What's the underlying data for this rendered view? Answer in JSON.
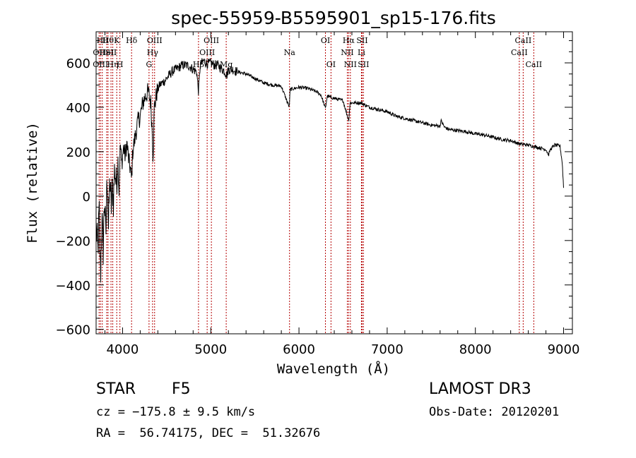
{
  "chart_data": {
    "type": "line",
    "title": "spec-55959-B5595901_sp15-176.fits",
    "xlabel": "Wavelength (Å)",
    "ylabel": "Flux (relative)",
    "xlim": [
      3700,
      9100
    ],
    "ylim": [
      -620,
      740
    ],
    "xticks": [
      4000,
      5000,
      6000,
      7000,
      8000,
      9000
    ],
    "yticks": [
      -600,
      -400,
      -200,
      0,
      200,
      400,
      600
    ],
    "grid": false,
    "series": [
      {
        "name": "spectrum",
        "anchors": [
          [
            3700,
            -150
          ],
          [
            3720,
            -250
          ],
          [
            3735,
            -60
          ],
          [
            3750,
            -370
          ],
          [
            3765,
            -100
          ],
          [
            3780,
            -240
          ],
          [
            3795,
            0
          ],
          [
            3810,
            -200
          ],
          [
            3825,
            120
          ],
          [
            3840,
            -150
          ],
          [
            3855,
            80
          ],
          [
            3870,
            -60
          ],
          [
            3885,
            50
          ],
          [
            3895,
            -30
          ],
          [
            3910,
            130
          ],
          [
            3930,
            40
          ],
          [
            3945,
            180
          ],
          [
            3960,
            20
          ],
          [
            3975,
            240
          ],
          [
            3990,
            140
          ],
          [
            4010,
            220
          ],
          [
            4030,
            180
          ],
          [
            4050,
            240
          ],
          [
            4070,
            160
          ],
          [
            4090,
            120
          ],
          [
            4102,
            70
          ],
          [
            4115,
            200
          ],
          [
            4140,
            260
          ],
          [
            4170,
            330
          ],
          [
            4200,
            360
          ],
          [
            4230,
            420
          ],
          [
            4260,
            450
          ],
          [
            4290,
            470
          ],
          [
            4320,
            420
          ],
          [
            4340,
            260
          ],
          [
            4345,
            170
          ],
          [
            4360,
            400
          ],
          [
            4390,
            470
          ],
          [
            4420,
            500
          ],
          [
            4450,
            510
          ],
          [
            4480,
            520
          ],
          [
            4520,
            540
          ],
          [
            4560,
            560
          ],
          [
            4600,
            570
          ],
          [
            4640,
            580
          ],
          [
            4680,
            590
          ],
          [
            4720,
            590
          ],
          [
            4760,
            585
          ],
          [
            4800,
            570
          ],
          [
            4840,
            560
          ],
          [
            4861,
            470
          ],
          [
            4880,
            590
          ],
          [
            4920,
            610
          ],
          [
            4960,
            595
          ],
          [
            5000,
            600
          ],
          [
            5040,
            590
          ],
          [
            5080,
            590
          ],
          [
            5120,
            575
          ],
          [
            5160,
            560
          ],
          [
            5183,
            545
          ],
          [
            5200,
            570
          ],
          [
            5250,
            570
          ],
          [
            5300,
            560
          ],
          [
            5400,
            550
          ],
          [
            5500,
            530
          ],
          [
            5600,
            510
          ],
          [
            5700,
            500
          ],
          [
            5800,
            495
          ],
          [
            5890,
            400
          ],
          [
            5900,
            480
          ],
          [
            6000,
            490
          ],
          [
            6100,
            485
          ],
          [
            6200,
            470
          ],
          [
            6250,
            455
          ],
          [
            6300,
            395
          ],
          [
            6320,
            450
          ],
          [
            6400,
            440
          ],
          [
            6500,
            430
          ],
          [
            6563,
            340
          ],
          [
            6580,
            420
          ],
          [
            6650,
            420
          ],
          [
            6700,
            420
          ],
          [
            6800,
            400
          ],
          [
            6900,
            390
          ],
          [
            7000,
            380
          ],
          [
            7100,
            360
          ],
          [
            7200,
            350
          ],
          [
            7300,
            340
          ],
          [
            7400,
            330
          ],
          [
            7500,
            320
          ],
          [
            7600,
            315
          ],
          [
            7610,
            340
          ],
          [
            7650,
            310
          ],
          [
            7700,
            300
          ],
          [
            7800,
            295
          ],
          [
            7900,
            290
          ],
          [
            8000,
            280
          ],
          [
            8100,
            275
          ],
          [
            8200,
            265
          ],
          [
            8300,
            255
          ],
          [
            8400,
            250
          ],
          [
            8500,
            235
          ],
          [
            8600,
            230
          ],
          [
            8700,
            220
          ],
          [
            8800,
            210
          ],
          [
            8830,
            185
          ],
          [
            8850,
            210
          ],
          [
            8900,
            230
          ],
          [
            8960,
            225
          ],
          [
            8985,
            150
          ],
          [
            9000,
            40
          ]
        ]
      }
    ],
    "lines": [
      {
        "wl": 3734,
        "row": 1,
        "label": "OII"
      },
      {
        "wl": 3750,
        "row": 2,
        "label": "OIII"
      },
      {
        "wl": 3770,
        "row": 0,
        "label": "Hθ"
      },
      {
        "wl": 3820,
        "row": 1,
        "label": "HeI"
      },
      {
        "wl": 3835,
        "row": 0,
        "label": "Hθ"
      },
      {
        "wl": 3869,
        "row": 1,
        "label": "SII"
      },
      {
        "wl": 3889,
        "row": 2,
        "label": "Hη"
      },
      {
        "wl": 3934,
        "row": 0,
        "label": "K"
      },
      {
        "wl": 3970,
        "row": 2,
        "label": "H"
      },
      {
        "wl": 4102,
        "row": 0,
        "label": "Hδ"
      },
      {
        "wl": 4300,
        "row": 2,
        "label": "G"
      },
      {
        "wl": 4340,
        "row": 1,
        "label": "Hγ"
      },
      {
        "wl": 4363,
        "row": 0,
        "label": "OIII"
      },
      {
        "wl": 4861,
        "row": 2,
        "label": "Hβ"
      },
      {
        "wl": 4959,
        "row": 1,
        "label": "OIII"
      },
      {
        "wl": 5007,
        "row": 0,
        "label": "OIII"
      },
      {
        "wl": 5175,
        "row": 2,
        "label": "Mg"
      },
      {
        "wl": 5893,
        "row": 1,
        "label": "Na"
      },
      {
        "wl": 6300,
        "row": 0,
        "label": "OI"
      },
      {
        "wl": 6363,
        "row": 2,
        "label": "OI"
      },
      {
        "wl": 6548,
        "row": 1,
        "label": "NII"
      },
      {
        "wl": 6563,
        "row": 0,
        "label": "Hα"
      },
      {
        "wl": 6583,
        "row": 2,
        "label": "NII"
      },
      {
        "wl": 6708,
        "row": 1,
        "label": "Li"
      },
      {
        "wl": 6716,
        "row": 0,
        "label": "SII"
      },
      {
        "wl": 6731,
        "row": 2,
        "label": "SII"
      },
      {
        "wl": 8498,
        "row": 1,
        "label": "CaII"
      },
      {
        "wl": 8542,
        "row": 0,
        "label": "CaII"
      },
      {
        "wl": 8662,
        "row": 2,
        "label": "CaII"
      }
    ]
  },
  "info": {
    "object_class": "STAR",
    "subclass": "F5",
    "survey": "LAMOST DR3",
    "redshift": "cz = −175.8 ± 9.5 km/s",
    "obs_date": "Obs-Date: 20120201",
    "coords": "RA =  56.74175, DEC =  51.32676"
  }
}
